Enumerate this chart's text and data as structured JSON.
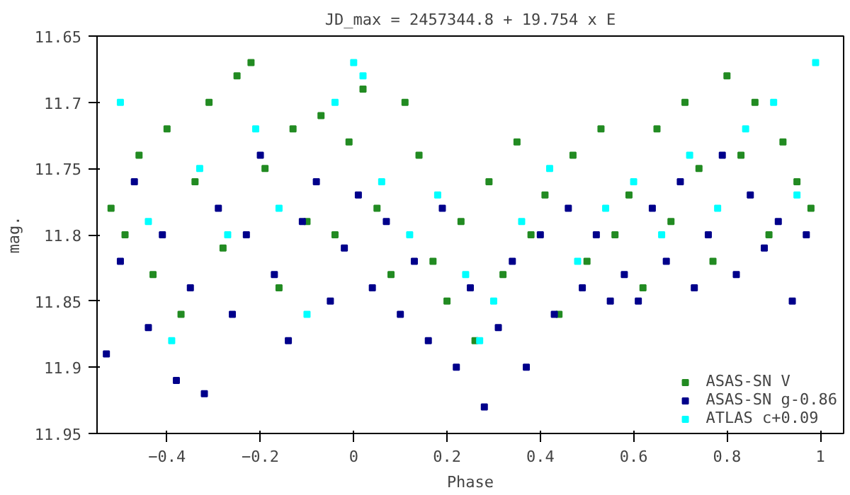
{
  "chart_data": {
    "type": "scatter",
    "title": "JD_max = 2457344.8 + 19.754 x E",
    "xlabel": "Phase",
    "ylabel": "mag.",
    "xlim": [
      -0.55,
      1.05
    ],
    "ylim": [
      11.95,
      11.65
    ],
    "xticks": [
      -0.4,
      -0.2,
      0,
      0.2,
      0.4,
      0.6,
      0.8,
      1
    ],
    "yticks": [
      11.65,
      11.7,
      11.75,
      11.8,
      11.85,
      11.9,
      11.95
    ],
    "grid": false,
    "legend": "bottom right",
    "marker": "square",
    "series": [
      {
        "name": "ASAS-SN V",
        "color": "#228b22",
        "x": [
          -0.52,
          -0.49,
          -0.46,
          -0.43,
          -0.4,
          -0.37,
          -0.34,
          -0.31,
          -0.28,
          -0.25,
          -0.22,
          -0.19,
          -0.16,
          -0.13,
          -0.1,
          -0.07,
          -0.04,
          -0.01,
          0.02,
          0.05,
          0.08,
          0.11,
          0.14,
          0.17,
          0.2,
          0.23,
          0.26,
          0.29,
          0.32,
          0.35,
          0.38,
          0.41,
          0.44,
          0.47,
          0.5,
          0.53,
          0.56,
          0.59,
          0.62,
          0.65,
          0.68,
          0.71,
          0.74,
          0.77,
          0.8,
          0.83,
          0.86,
          0.89,
          0.92,
          0.95,
          0.98
        ],
        "values": [
          11.78,
          11.8,
          11.74,
          11.83,
          11.72,
          11.86,
          11.76,
          11.7,
          11.81,
          11.68,
          11.67,
          11.75,
          11.84,
          11.72,
          11.79,
          11.71,
          11.8,
          11.73,
          11.69,
          11.78,
          11.83,
          11.7,
          11.74,
          11.82,
          11.85,
          11.79,
          11.88,
          11.76,
          11.83,
          11.73,
          11.8,
          11.77,
          11.86,
          11.74,
          11.82,
          11.72,
          11.8,
          11.77,
          11.84,
          11.72,
          11.79,
          11.7,
          11.75,
          11.82,
          11.68,
          11.74,
          11.7,
          11.8,
          11.73,
          11.76,
          11.78
        ]
      },
      {
        "name": "ASAS-SN g-0.86",
        "color": "#00008b",
        "x": [
          -0.53,
          -0.5,
          -0.47,
          -0.44,
          -0.41,
          -0.38,
          -0.35,
          -0.32,
          -0.29,
          -0.26,
          -0.23,
          -0.2,
          -0.17,
          -0.14,
          -0.11,
          -0.08,
          -0.05,
          -0.02,
          0.01,
          0.04,
          0.07,
          0.1,
          0.13,
          0.16,
          0.19,
          0.22,
          0.25,
          0.28,
          0.31,
          0.34,
          0.37,
          0.4,
          0.43,
          0.46,
          0.49,
          0.52,
          0.55,
          0.58,
          0.61,
          0.64,
          0.67,
          0.7,
          0.73,
          0.76,
          0.79,
          0.82,
          0.85,
          0.88,
          0.91,
          0.94,
          0.97
        ],
        "values": [
          11.89,
          11.82,
          11.76,
          11.87,
          11.8,
          11.91,
          11.84,
          11.92,
          11.78,
          11.86,
          11.8,
          11.74,
          11.83,
          11.88,
          11.79,
          11.76,
          11.85,
          11.81,
          11.77,
          11.84,
          11.79,
          11.86,
          11.82,
          11.88,
          11.78,
          11.9,
          11.84,
          11.93,
          11.87,
          11.82,
          11.9,
          11.8,
          11.86,
          11.78,
          11.84,
          11.8,
          11.85,
          11.83,
          11.85,
          11.78,
          11.82,
          11.76,
          11.84,
          11.8,
          11.74,
          11.83,
          11.77,
          11.81,
          11.79,
          11.85,
          11.8
        ]
      },
      {
        "name": "ATLAS c+0.09",
        "color": "#00ffff",
        "x": [
          -0.5,
          -0.44,
          -0.39,
          -0.33,
          -0.27,
          -0.21,
          -0.16,
          -0.1,
          -0.04,
          0.0,
          0.02,
          0.06,
          0.12,
          0.18,
          0.24,
          0.27,
          0.3,
          0.36,
          0.42,
          0.48,
          0.54,
          0.6,
          0.66,
          0.72,
          0.78,
          0.84,
          0.9,
          0.95,
          0.99
        ],
        "values": [
          11.7,
          11.79,
          11.88,
          11.75,
          11.8,
          11.72,
          11.78,
          11.86,
          11.7,
          11.67,
          11.68,
          11.76,
          11.8,
          11.77,
          11.83,
          11.88,
          11.85,
          11.79,
          11.75,
          11.82,
          11.78,
          11.76,
          11.8,
          11.74,
          11.78,
          11.72,
          11.7,
          11.77,
          11.67
        ]
      }
    ]
  }
}
